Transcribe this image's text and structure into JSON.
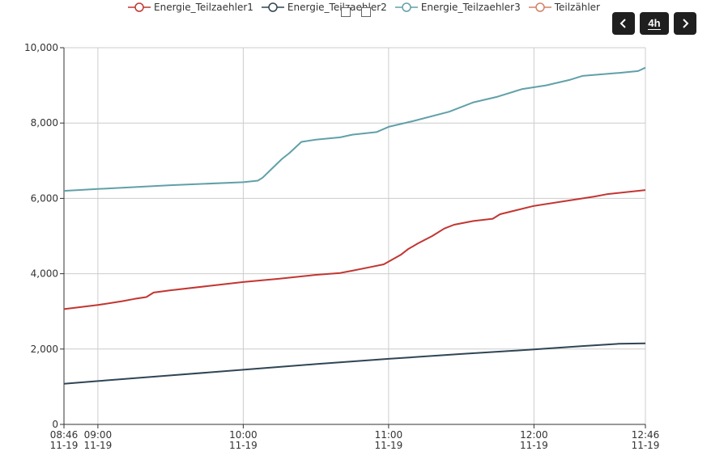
{
  "legend": [
    {
      "name": "Energie_Teilzaehler1",
      "color": "#c23531"
    },
    {
      "name": "Energie_Teilzaehler2",
      "color": "#2f4554"
    },
    {
      "name": "Energie_Teilzaehler3",
      "color": "#61a0a8"
    },
    {
      "name": "Teilzähler",
      "color": "#d48265"
    }
  ],
  "controls": {
    "range_label": "4h",
    "prev_icon": "chevron-left-icon",
    "next_icon": "chevron-right-icon"
  },
  "chart_data": {
    "type": "line",
    "x_ticks": [
      {
        "time": "08:46",
        "date": "11-19"
      },
      {
        "time": "09:00",
        "date": "11-19"
      },
      {
        "time": "10:00",
        "date": "11-19"
      },
      {
        "time": "11:00",
        "date": "11-19"
      },
      {
        "time": "12:00",
        "date": "11-19"
      },
      {
        "time": "12:46",
        "date": "11-19"
      }
    ],
    "y_ticks": [
      "0",
      "2,000",
      "4,000",
      "6,000",
      "8,000",
      "10,000"
    ],
    "xlim": [
      "08:46",
      "12:46"
    ],
    "ylim": [
      0,
      10000
    ],
    "grid": true,
    "legend_position": "top",
    "series": [
      {
        "name": "Energie_Teilzaehler1",
        "color": "#c23531",
        "points": [
          [
            "08:46",
            3060
          ],
          [
            "09:00",
            3170
          ],
          [
            "09:10",
            3270
          ],
          [
            "09:15",
            3330
          ],
          [
            "09:20",
            3380
          ],
          [
            "09:23",
            3500
          ],
          [
            "09:30",
            3560
          ],
          [
            "09:45",
            3670
          ],
          [
            "10:00",
            3780
          ],
          [
            "10:15",
            3870
          ],
          [
            "10:30",
            3970
          ],
          [
            "10:40",
            4020
          ],
          [
            "10:45",
            4080
          ],
          [
            "10:52",
            4170
          ],
          [
            "10:58",
            4250
          ],
          [
            "11:05",
            4500
          ],
          [
            "11:08",
            4650
          ],
          [
            "11:12",
            4800
          ],
          [
            "11:18",
            5000
          ],
          [
            "11:23",
            5200
          ],
          [
            "11:27",
            5300
          ],
          [
            "11:35",
            5400
          ],
          [
            "11:43",
            5460
          ],
          [
            "11:46",
            5580
          ],
          [
            "12:00",
            5800
          ],
          [
            "12:15",
            5950
          ],
          [
            "12:25",
            6050
          ],
          [
            "12:30",
            6110
          ],
          [
            "12:46",
            6220
          ]
        ]
      },
      {
        "name": "Energie_Teilzaehler2",
        "color": "#2f4554",
        "points": [
          [
            "08:46",
            1080
          ],
          [
            "09:00",
            1150
          ],
          [
            "09:30",
            1300
          ],
          [
            "10:00",
            1450
          ],
          [
            "10:30",
            1600
          ],
          [
            "11:00",
            1740
          ],
          [
            "11:30",
            1870
          ],
          [
            "12:00",
            1990
          ],
          [
            "12:20",
            2080
          ],
          [
            "12:35",
            2140
          ],
          [
            "12:46",
            2150
          ]
        ]
      },
      {
        "name": "Energie_Teilzaehler3",
        "color": "#61a0a8",
        "points": [
          [
            "08:46",
            6200
          ],
          [
            "09:00",
            6250
          ],
          [
            "09:30",
            6350
          ],
          [
            "10:00",
            6430
          ],
          [
            "10:06",
            6470
          ],
          [
            "10:08",
            6550
          ],
          [
            "10:12",
            6800
          ],
          [
            "10:16",
            7050
          ],
          [
            "10:19",
            7200
          ],
          [
            "10:24",
            7500
          ],
          [
            "10:30",
            7560
          ],
          [
            "10:40",
            7620
          ],
          [
            "10:45",
            7690
          ],
          [
            "10:55",
            7760
          ],
          [
            "11:00",
            7900
          ],
          [
            "11:10",
            8050
          ],
          [
            "11:25",
            8300
          ],
          [
            "11:35",
            8550
          ],
          [
            "11:45",
            8700
          ],
          [
            "11:55",
            8900
          ],
          [
            "12:05",
            9000
          ],
          [
            "12:15",
            9150
          ],
          [
            "12:20",
            9250
          ],
          [
            "12:35",
            9330
          ],
          [
            "12:43",
            9380
          ],
          [
            "12:46",
            9470
          ]
        ]
      },
      {
        "name": "Teilzähler",
        "color": "#d48265",
        "points": []
      }
    ]
  }
}
